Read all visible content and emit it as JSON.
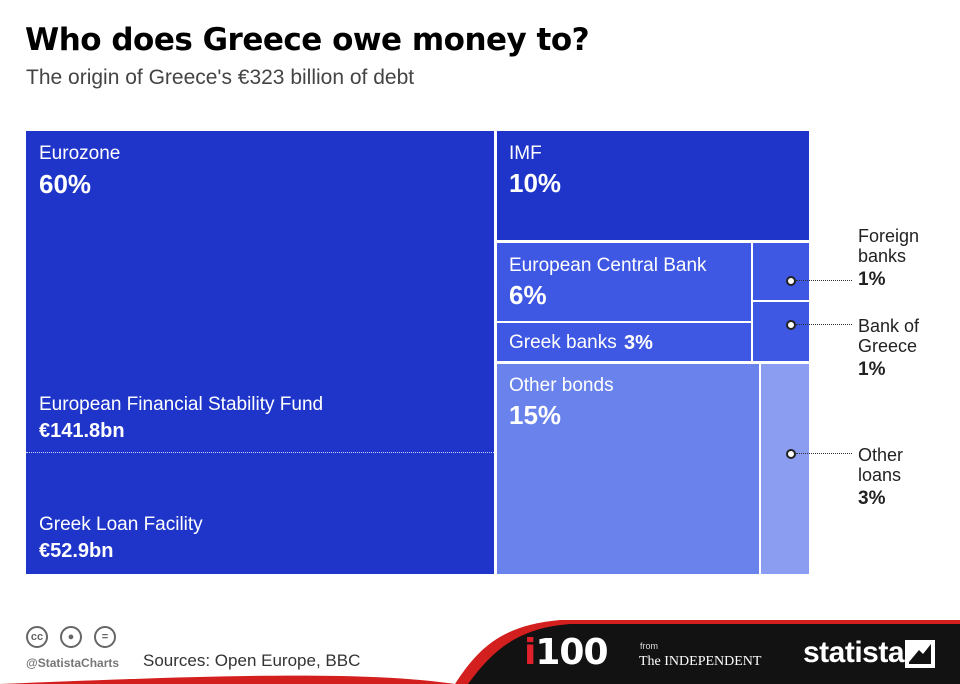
{
  "title": "Who does Greece owe money to?",
  "subtitle": "The origin of Greece's €323 billion of debt",
  "chart_data": {
    "type": "treemap",
    "total": "€323 billion",
    "items": [
      {
        "name": "Eurozone",
        "value": 60,
        "value_label": "60%",
        "color": "#1f35c9",
        "components": [
          {
            "name": "European Financial Stability Fund",
            "value_label": "€141.8bn"
          },
          {
            "name": "Greek Loan Facility",
            "value_label": "€52.9bn"
          }
        ]
      },
      {
        "name": "IMF",
        "value": 10,
        "value_label": "10%",
        "color": "#1f35c9"
      },
      {
        "name": "European Central Bank",
        "value": 6,
        "value_label": "6%",
        "color": "#3f58e3"
      },
      {
        "name": "Greek banks",
        "value": 3,
        "value_label": "3%",
        "color": "#3f58e3"
      },
      {
        "name": "Other bonds",
        "value": 15,
        "value_label": "15%",
        "color": "#6a82ec"
      },
      {
        "name": "Foreign banks",
        "value": 1,
        "value_label": "1%",
        "color": "#3f58e3"
      },
      {
        "name": "Bank of Greece",
        "value": 1,
        "value_label": "1%",
        "color": "#3f58e3"
      },
      {
        "name": "Other loans",
        "value": 3,
        "value_label": "3%",
        "color": "#8a9df0"
      }
    ]
  },
  "callouts": {
    "foreign_banks": {
      "label": "Foreign\nbanks",
      "value": "1%"
    },
    "bank_of_greece": {
      "label": "Bank of\nGreece",
      "value": "1%"
    },
    "other_loans": {
      "label": "Other\nloans",
      "value": "3%"
    }
  },
  "footer": {
    "handle": "@StatistaCharts",
    "sources": "Sources: Open Europe, BBC",
    "brand_i": "i",
    "brand_100": "100",
    "from": "from",
    "independent": "The INDEPENDENT",
    "statista": "statista",
    "accent_color": "#d41f1f",
    "bar_color": "#121212",
    "icons": [
      "cc-icon",
      "attribution-icon",
      "no-derivatives-icon"
    ]
  }
}
